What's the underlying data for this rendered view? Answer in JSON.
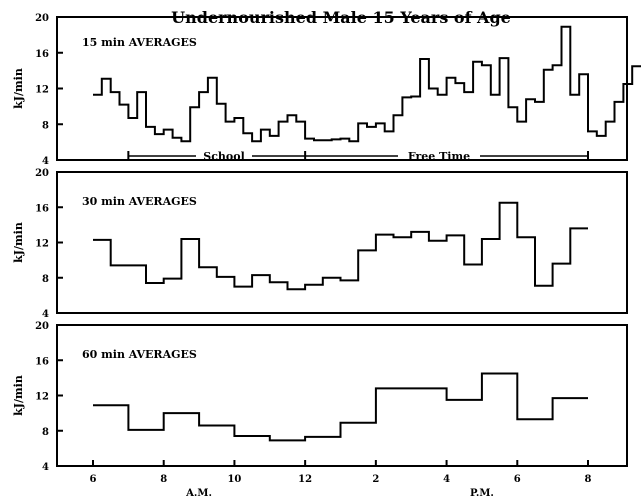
{
  "chart_data": {
    "type": "line",
    "title": "Undernourished Male 15 Years of Age",
    "xlabel": "",
    "xlim": [
      5.5,
      9.1
    ],
    "x_ticks": [
      "6",
      "8",
      "10",
      "12",
      "2",
      "4",
      "6",
      "8"
    ],
    "x_tick_positions": [
      6,
      8,
      10,
      12,
      14,
      16,
      18,
      20
    ],
    "x_period_labels": [
      "A.M.",
      "P.M."
    ],
    "annotations": {
      "school": {
        "label": "School",
        "start": 7,
        "end": 12
      },
      "free_time": {
        "label": "Free Time",
        "start": 12,
        "end": 20
      }
    },
    "panels": [
      {
        "name": "15 min AVERAGES",
        "ylabel": "kJ/min",
        "ylim": [
          4,
          20
        ],
        "yticks": [
          "4",
          "8",
          "12",
          "16",
          "20"
        ],
        "step_minutes": 15,
        "series": [
          {
            "x_start": 6.0,
            "values": [
              11.3,
              13.1,
              11.6,
              10.2,
              8.7,
              11.6,
              7.7,
              6.9,
              7.4,
              6.5,
              6.1,
              9.9,
              11.6,
              13.2,
              10.3,
              8.3,
              8.7,
              7.0,
              6.1,
              7.4,
              6.7,
              8.3,
              9.0,
              8.3,
              6.4,
              6.2,
              6.2,
              6.3,
              6.4,
              6.1,
              8.1,
              7.7,
              8.1,
              7.2,
              9.0,
              11.0,
              11.1,
              15.3,
              12.0,
              11.3,
              13.2,
              12.6,
              11.6,
              15.0,
              14.6,
              11.3,
              15.4,
              9.9,
              8.3,
              10.8,
              10.5,
              14.1,
              14.6,
              18.9,
              11.3,
              13.6,
              7.2,
              6.7,
              8.3,
              10.5,
              12.5,
              14.5
            ]
          }
        ]
      },
      {
        "name": "30 min AVERAGES",
        "ylabel": "kJ/min",
        "ylim": [
          4,
          20
        ],
        "yticks": [
          "4",
          "8",
          "12",
          "16",
          "20"
        ],
        "step_minutes": 30,
        "series": [
          {
            "x_start": 6.0,
            "values": [
              12.3,
              9.4,
              9.4,
              7.4,
              7.9,
              12.4,
              9.2,
              8.1,
              7.0,
              8.3,
              7.5,
              6.7,
              7.2,
              8.0,
              7.7,
              11.1,
              12.9,
              12.6,
              13.2,
              12.2,
              12.8,
              9.5,
              12.4,
              16.5,
              12.6,
              7.1,
              9.6,
              13.6
            ]
          }
        ]
      },
      {
        "name": "60 min AVERAGES",
        "ylabel": "kJ/min",
        "ylim": [
          4,
          20
        ],
        "yticks": [
          "4",
          "8",
          "12",
          "16",
          "20"
        ],
        "step_minutes": 60,
        "series": [
          {
            "x_start": 6.0,
            "values": [
              10.9,
              8.1,
              10.0,
              8.6,
              7.4,
              6.9,
              7.3,
              8.9,
              12.8,
              12.8,
              11.5,
              14.5,
              9.3,
              11.7
            ]
          }
        ]
      }
    ]
  }
}
